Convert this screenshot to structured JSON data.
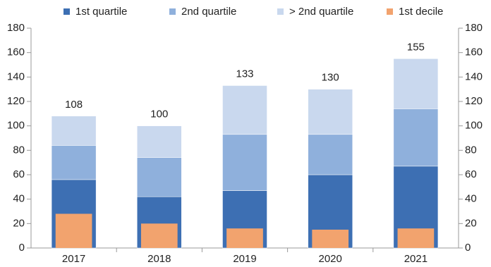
{
  "chart_data": {
    "type": "bar",
    "categories": [
      "2017",
      "2018",
      "2019",
      "2020",
      "2021"
    ],
    "series": [
      {
        "name": "1st quartile",
        "color": "#3d6fb3",
        "values": [
          56,
          42,
          47,
          60,
          67
        ]
      },
      {
        "name": "2nd quartile",
        "color": "#8fb0dc",
        "values": [
          28,
          32,
          46,
          33,
          47
        ]
      },
      {
        "name": "> 2nd quartile",
        "color": "#c9d8ee",
        "values": [
          24,
          26,
          40,
          37,
          41
        ]
      },
      {
        "name": "1st decile",
        "color": "#f2a36e",
        "values": [
          28,
          20,
          16,
          15,
          16
        ],
        "overlay": true
      }
    ],
    "totals": [
      108,
      100,
      133,
      130,
      155
    ],
    "ylim": [
      0,
      180
    ],
    "yticks": [
      0,
      20,
      40,
      60,
      80,
      100,
      120,
      140,
      160,
      180
    ],
    "legend": "top"
  }
}
